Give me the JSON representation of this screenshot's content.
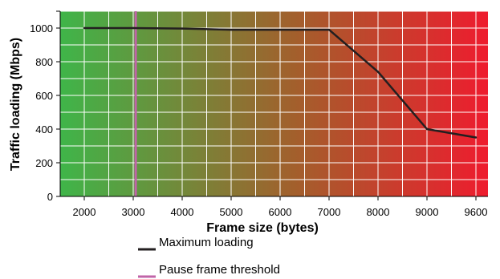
{
  "chart_data": {
    "type": "line",
    "xlabel": "Frame size (bytes)",
    "ylabel": "Traffic loading (Mbps)",
    "x_ticks": [
      "2000",
      "3000",
      "4000",
      "5000",
      "6000",
      "7000",
      "8000",
      "9000",
      "9600"
    ],
    "y_ticks": [
      "0",
      "200",
      "400",
      "600",
      "800",
      "1000"
    ],
    "ylim": [
      0,
      1100
    ],
    "grid": true,
    "background": "gradient green (left) to red (right)",
    "series": [
      {
        "name": "Maximum loading",
        "color": "#231f20",
        "points": [
          {
            "x": "2000",
            "y": 1000
          },
          {
            "x": "3000",
            "y": 1000
          },
          {
            "x": "4000",
            "y": 997
          },
          {
            "x": "5000",
            "y": 990
          },
          {
            "x": "6000",
            "y": 990
          },
          {
            "x": "7000",
            "y": 990
          },
          {
            "x": "8000",
            "y": 740
          },
          {
            "x": "9000",
            "y": 400
          },
          {
            "x": "9600",
            "y": 350
          }
        ]
      }
    ],
    "threshold": {
      "name": "Pause frame threshold",
      "x": 3050,
      "color": "#c064a8"
    },
    "legend": {
      "placement": "bottom",
      "entries": [
        {
          "label": "Maximum loading",
          "color": "#231f20"
        },
        {
          "label": "Pause frame threshold",
          "color": "#c064a8"
        }
      ]
    },
    "colors": {
      "gradient_start": "#3fb549",
      "gradient_mid": "#a35f2c",
      "gradient_end": "#ee1c2e",
      "grid": "#ffffff"
    }
  }
}
